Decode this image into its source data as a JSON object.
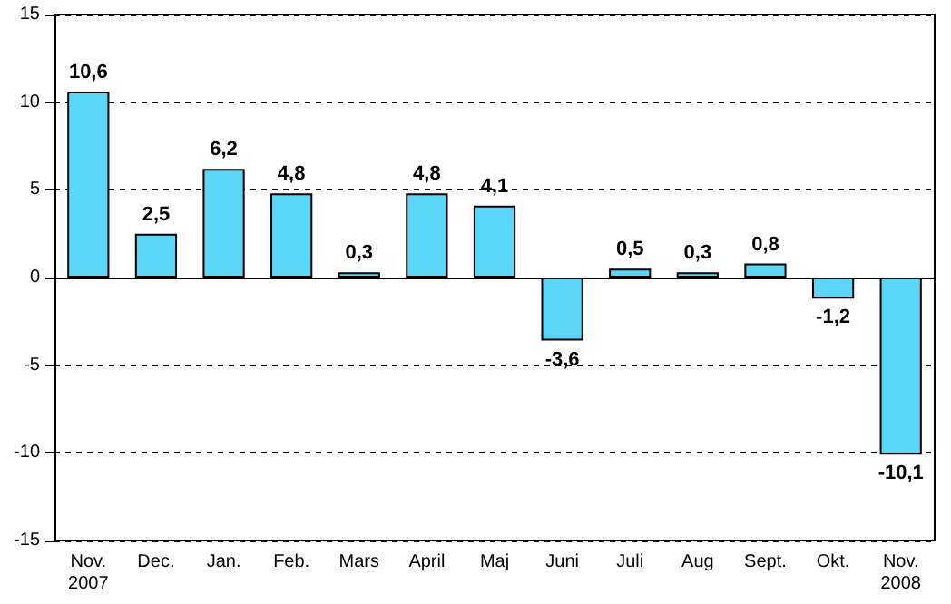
{
  "chart_data": {
    "type": "bar",
    "categories": [
      "Nov.\n2007",
      "Dec.",
      "Jan.",
      "Feb.",
      "Mars",
      "April",
      "Maj",
      "Juni",
      "Juli",
      "Aug",
      "Sept.",
      "Okt.",
      "Nov.\n2008"
    ],
    "values": [
      10.6,
      2.5,
      6.2,
      4.8,
      0.3,
      4.8,
      4.1,
      -3.6,
      0.5,
      0.3,
      0.8,
      -1.2,
      -10.1
    ],
    "value_labels": [
      "10,6",
      "2,5",
      "6,2",
      "4,8",
      "0,3",
      "4,8",
      "4,1",
      "-3,6",
      "0,5",
      "0,3",
      "0,8",
      "-1,2",
      "-10,1"
    ],
    "color": "#5ad7f8",
    "ylim": [
      -15,
      15
    ],
    "yticks": [
      -15,
      -10,
      -5,
      0,
      5,
      10,
      15
    ],
    "grid": "y"
  }
}
